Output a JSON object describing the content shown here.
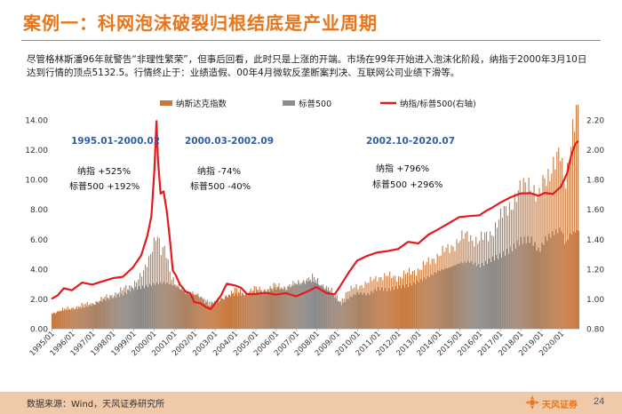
{
  "page": {
    "title": "案例一：科网泡沫破裂归根结底是产业周期",
    "description": "尽管格林斯潘96年就警告“非理性繁荣”，但事后回看，此时只是上涨的开端。市场在99年开始进入泡沫化阶段，纳指于2000年3月10日达到行情的顶点5132.5。行情终止于：业绩造假、00年4月微软反垄断案判决、互联网公司业绩下滑等。",
    "source": "数据来源：Wind，天风证券研究所",
    "logo_text": "天风证券",
    "page_number": "24"
  },
  "colors": {
    "accent": "#E8751A",
    "nasdaq": "#C8783C",
    "sp500": "#8C8C8C",
    "ratio": "#E41A1C",
    "period_label": "#2E5FA8",
    "footer": "#F0C9A8"
  },
  "chart_data": {
    "type": "bar+line",
    "legend": [
      "纳斯达克指数",
      "标普500",
      "纳指/标普500(右轴)"
    ],
    "legend_position": "top",
    "x_ticks": [
      "1995/01",
      "1996/01",
      "1997/01",
      "1998/01",
      "1999/01",
      "2000/01",
      "2001/01",
      "2002/01",
      "2003/01",
      "2004/01",
      "2005/01",
      "2006/01",
      "2007/01",
      "2008/01",
      "2009/01",
      "2010/01",
      "2011/01",
      "2012/01",
      "2013/01",
      "2014/01",
      "2015/01",
      "2016/01",
      "2017/01",
      "2018/01",
      "2019/01",
      "2020/01"
    ],
    "y_left": {
      "ticks": [
        "0.00",
        "2.00",
        "4.00",
        "6.00",
        "8.00",
        "10.00",
        "12.00",
        "14.00"
      ],
      "range": [
        0,
        14
      ]
    },
    "y_right": {
      "ticks": [
        "0.80",
        "1.00",
        "1.20",
        "1.40",
        "1.60",
        "1.80",
        "2.00",
        "2.20"
      ],
      "range": [
        0.8,
        2.2
      ]
    },
    "series": [
      {
        "name": "纳斯达克指数",
        "axis": "left",
        "style": "bar",
        "color": "#C8783C",
        "x": [
          1995.0,
          1995.5,
          1996.0,
          1996.5,
          1997.0,
          1997.5,
          1998.0,
          1998.5,
          1999.0,
          1999.5,
          1999.8,
          2000.0,
          2000.2,
          2000.4,
          2000.6,
          2000.9,
          2001.2,
          2001.6,
          2002.0,
          2002.4,
          2002.8,
          2003.2,
          2003.6,
          2004.0,
          2004.5,
          2005.0,
          2005.5,
          2006.0,
          2006.5,
          2007.0,
          2007.5,
          2007.9,
          2008.3,
          2008.7,
          2009.2,
          2009.5,
          2010.0,
          2010.5,
          2011.0,
          2011.5,
          2012.0,
          2012.5,
          2013.0,
          2013.5,
          2014.0,
          2014.5,
          2015.0,
          2015.5,
          2016.0,
          2016.5,
          2017.0,
          2017.5,
          2018.0,
          2018.5,
          2018.9,
          2019.2,
          2019.6,
          2020.0,
          2020.2,
          2020.4,
          2020.6,
          2020.8
        ],
        "y": [
          1.0,
          1.3,
          1.4,
          1.6,
          1.7,
          2.0,
          2.3,
          2.6,
          3.0,
          3.6,
          4.8,
          5.8,
          6.3,
          5.0,
          5.4,
          3.6,
          2.8,
          2.5,
          2.4,
          2.0,
          1.6,
          1.8,
          2.2,
          2.6,
          2.4,
          2.7,
          2.6,
          2.9,
          2.8,
          3.0,
          3.3,
          3.4,
          3.0,
          2.6,
          1.9,
          2.4,
          2.9,
          3.0,
          3.5,
          3.5,
          3.5,
          3.7,
          4.0,
          4.4,
          5.0,
          5.3,
          6.0,
          6.2,
          5.9,
          6.3,
          7.3,
          8.3,
          9.2,
          10.0,
          8.5,
          10.0,
          11.0,
          11.5,
          9.5,
          11.5,
          13.5,
          14.2
        ]
      },
      {
        "name": "标普500",
        "axis": "left",
        "style": "bar",
        "color": "#8C8C8C",
        "x": [
          1995.0,
          1995.5,
          1996.0,
          1996.5,
          1997.0,
          1997.5,
          1998.0,
          1998.5,
          1999.0,
          1999.5,
          2000.0,
          2000.5,
          2001.0,
          2001.5,
          2002.0,
          2002.5,
          2002.8,
          2003.2,
          2003.6,
          2004.0,
          2004.5,
          2005.0,
          2005.5,
          2006.0,
          2006.5,
          2007.0,
          2007.5,
          2007.9,
          2008.3,
          2008.7,
          2009.2,
          2009.5,
          2010.0,
          2010.5,
          2011.0,
          2011.5,
          2012.0,
          2012.5,
          2013.0,
          2013.5,
          2014.0,
          2014.5,
          2015.0,
          2015.5,
          2016.0,
          2016.5,
          2017.0,
          2017.5,
          2018.0,
          2018.5,
          2018.9,
          2019.2,
          2019.6,
          2020.0,
          2020.2,
          2020.4,
          2020.8
        ],
        "y": [
          1.0,
          1.2,
          1.3,
          1.4,
          1.6,
          1.9,
          2.1,
          2.3,
          2.7,
          2.8,
          3.0,
          3.1,
          2.9,
          2.5,
          2.3,
          2.0,
          1.8,
          1.9,
          2.2,
          2.3,
          2.3,
          2.5,
          2.5,
          2.7,
          2.7,
          3.0,
          3.2,
          3.1,
          2.8,
          2.4,
          1.6,
          2.0,
          2.4,
          2.3,
          2.7,
          2.6,
          2.8,
          2.9,
          3.2,
          3.5,
          3.9,
          4.1,
          4.4,
          4.5,
          4.2,
          4.6,
          4.9,
          5.3,
          5.9,
          6.0,
          5.2,
          6.0,
          6.4,
          6.7,
          5.6,
          6.3,
          6.6
        ]
      },
      {
        "name": "纳指/标普500(右轴)",
        "axis": "right",
        "style": "line",
        "color": "#E41A1C",
        "x": [
          1995.0,
          1995.3,
          1995.6,
          1996.0,
          1996.5,
          1997.0,
          1997.5,
          1998.0,
          1998.5,
          1999.0,
          1999.4,
          1999.7,
          1999.9,
          2000.05,
          2000.15,
          2000.22,
          2000.35,
          2000.5,
          2000.65,
          2000.8,
          2000.95,
          2001.1,
          2001.3,
          2001.6,
          2001.8,
          2002.0,
          2002.3,
          2002.6,
          2002.8,
          2003.0,
          2003.3,
          2003.6,
          2004.0,
          2004.3,
          2004.6,
          2005.0,
          2005.5,
          2006.0,
          2006.5,
          2007.0,
          2007.5,
          2008.0,
          2008.5,
          2008.9,
          2009.2,
          2009.6,
          2010.0,
          2010.5,
          2011.0,
          2011.5,
          2012.0,
          2012.5,
          2013.0,
          2013.5,
          2014.0,
          2014.5,
          2015.0,
          2015.5,
          2016.0,
          2016.3,
          2016.6,
          2017.0,
          2017.5,
          2018.0,
          2018.5,
          2018.9,
          2019.2,
          2019.6,
          2020.0,
          2020.3,
          2020.5,
          2020.7,
          2020.85
        ],
        "y": [
          1.0,
          1.03,
          1.06,
          1.07,
          1.1,
          1.1,
          1.12,
          1.13,
          1.16,
          1.2,
          1.3,
          1.42,
          1.55,
          1.88,
          2.18,
          1.95,
          1.7,
          1.72,
          1.6,
          1.4,
          1.2,
          1.15,
          1.1,
          1.05,
          1.03,
          0.99,
          0.96,
          0.95,
          0.93,
          0.96,
          1.03,
          1.09,
          1.1,
          1.07,
          1.03,
          1.04,
          1.03,
          1.04,
          1.03,
          1.02,
          1.05,
          1.07,
          1.05,
          1.02,
          1.1,
          1.18,
          1.25,
          1.3,
          1.3,
          1.33,
          1.33,
          1.38,
          1.38,
          1.42,
          1.48,
          1.5,
          1.55,
          1.56,
          1.55,
          1.6,
          1.6,
          1.65,
          1.68,
          1.7,
          1.72,
          1.68,
          1.72,
          1.7,
          1.75,
          1.85,
          1.95,
          2.05,
          2.06
        ]
      }
    ],
    "annotations": [
      {
        "kind": "period",
        "text": "1995.01-2000.02"
      },
      {
        "kind": "period",
        "text": "2000.03-2002.09"
      },
      {
        "kind": "period",
        "text": "2002.10-2020.07"
      },
      {
        "kind": "stat",
        "text": "纳指 +525%"
      },
      {
        "kind": "stat",
        "text": "标普500 +192%"
      },
      {
        "kind": "stat",
        "text": "纳指 -74%"
      },
      {
        "kind": "stat",
        "text": "标普500 -40%"
      },
      {
        "kind": "stat",
        "text": "纳指 +796%"
      },
      {
        "kind": "stat",
        "text": "标普500 +296%"
      }
    ]
  }
}
